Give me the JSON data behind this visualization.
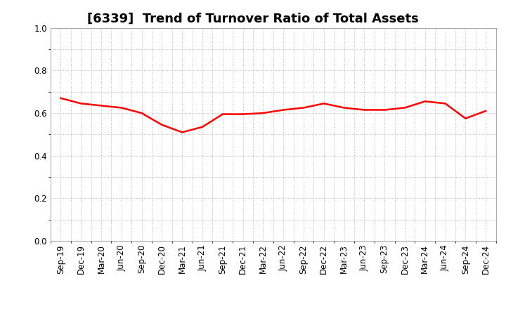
{
  "title": "[6339]  Trend of Turnover Ratio of Total Assets",
  "x_labels": [
    "Sep-19",
    "Dec-19",
    "Mar-20",
    "Jun-20",
    "Sep-20",
    "Dec-20",
    "Mar-21",
    "Jun-21",
    "Sep-21",
    "Dec-21",
    "Mar-22",
    "Jun-22",
    "Sep-22",
    "Dec-22",
    "Mar-23",
    "Jun-23",
    "Sep-23",
    "Dec-23",
    "Mar-24",
    "Jun-24",
    "Sep-24",
    "Dec-24"
  ],
  "values": [
    0.67,
    0.645,
    0.635,
    0.625,
    0.6,
    0.545,
    0.51,
    0.535,
    0.595,
    0.595,
    0.6,
    0.615,
    0.625,
    0.645,
    0.625,
    0.615,
    0.615,
    0.625,
    0.655,
    0.645,
    0.575,
    0.61
  ],
  "line_color": "#FF0000",
  "line_width": 1.8,
  "ylim": [
    0.0,
    1.0
  ],
  "yticks": [
    0.0,
    0.2,
    0.4,
    0.6,
    0.8,
    1.0
  ],
  "background_color": "#FFFFFF",
  "grid_color": "#AAAAAA",
  "title_fontsize": 13,
  "tick_fontsize": 8.5
}
